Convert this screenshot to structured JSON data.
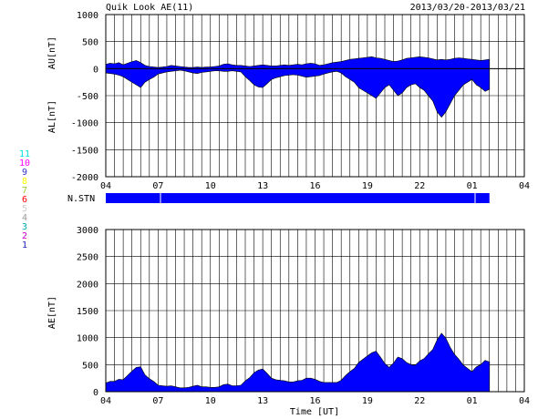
{
  "header": {
    "title": "Quik Look AE(11)",
    "date_range": "2013/03/20-2013/03/21"
  },
  "station_legend": [
    {
      "label": "11",
      "color": "#00e0e0"
    },
    {
      "label": "10",
      "color": "#ff00ff"
    },
    {
      "label": "9",
      "color": "#3333cc"
    },
    {
      "label": "8",
      "color": "#ffff00"
    },
    {
      "label": "7",
      "color": "#99cc33"
    },
    {
      "label": "6",
      "color": "#ff0000"
    },
    {
      "label": "5",
      "color": "#cccccc"
    },
    {
      "label": "4",
      "color": "#999999"
    },
    {
      "label": "3",
      "color": "#00aaaa"
    },
    {
      "label": "2",
      "color": "#cc00cc"
    },
    {
      "label": "1",
      "color": "#2222bb"
    }
  ],
  "nstn_label": "N.STN",
  "chart_data": [
    {
      "type": "area",
      "ylabel_upper": "AU[nT]",
      "ylabel_lower": "AL[nT]",
      "ylim": [
        -2000,
        1000
      ],
      "yticks": [
        1000,
        500,
        0,
        -500,
        -1000,
        -1500,
        -2000
      ],
      "xlim": [
        0,
        48
      ],
      "xticks": [
        "04",
        "07",
        "10",
        "13",
        "16",
        "19",
        "22",
        "01",
        "04"
      ],
      "grid": true,
      "fill_color": "#0000ff",
      "x": [
        0,
        0.5,
        1,
        1.5,
        2,
        2.5,
        3,
        3.5,
        4,
        4.5,
        5,
        5.5,
        6,
        6.5,
        7,
        7.5,
        8,
        8.5,
        9,
        9.5,
        10,
        10.5,
        11,
        11.5,
        12,
        12.5,
        13,
        13.5,
        14,
        14.5,
        15,
        15.5,
        16,
        16.5,
        17,
        17.5,
        18,
        18.5,
        19,
        19.5,
        20,
        20.5,
        21,
        21.5,
        22,
        22.5,
        23,
        23.5,
        24,
        24.5,
        25,
        25.5,
        26,
        26.5,
        27,
        27.5,
        28,
        28.5,
        29,
        29.5,
        30,
        30.5,
        31,
        31.5,
        32,
        32.5,
        33,
        33.5,
        34,
        34.5,
        35,
        35.5,
        36,
        36.5,
        37,
        37.5,
        38,
        38.5,
        39,
        39.5,
        40,
        40.5,
        41,
        41.5,
        42,
        42.5,
        43,
        43.5,
        44
      ],
      "series": [
        {
          "name": "AU",
          "values": [
            80,
            100,
            90,
            110,
            70,
            100,
            130,
            150,
            110,
            60,
            40,
            30,
            20,
            30,
            40,
            60,
            50,
            40,
            30,
            20,
            20,
            30,
            20,
            30,
            30,
            40,
            50,
            80,
            90,
            70,
            60,
            60,
            50,
            40,
            50,
            60,
            70,
            60,
            50,
            50,
            60,
            70,
            60,
            70,
            80,
            70,
            90,
            100,
            90,
            60,
            70,
            90,
            110,
            120,
            130,
            150,
            170,
            180,
            190,
            200,
            210,
            220,
            200,
            190,
            170,
            150,
            130,
            140,
            160,
            190,
            200,
            210,
            220,
            210,
            200,
            180,
            160,
            170,
            160,
            170,
            190,
            200,
            190,
            180,
            170,
            160,
            150,
            160,
            170
          ]
        },
        {
          "name": "AL",
          "values": [
            -80,
            -90,
            -100,
            -120,
            -150,
            -200,
            -250,
            -300,
            -350,
            -250,
            -200,
            -160,
            -100,
            -80,
            -60,
            -50,
            -40,
            -30,
            -40,
            -60,
            -80,
            -90,
            -70,
            -60,
            -50,
            -40,
            -40,
            -50,
            -50,
            -40,
            -50,
            -60,
            -150,
            -220,
            -300,
            -340,
            -350,
            -280,
            -200,
            -170,
            -150,
            -130,
            -120,
            -110,
            -120,
            -140,
            -160,
            -150,
            -140,
            -130,
            -100,
            -80,
            -60,
            -50,
            -80,
            -150,
            -200,
            -250,
            -350,
            -400,
            -450,
            -500,
            -550,
            -450,
            -350,
            -300,
            -400,
            -500,
            -450,
            -350,
            -300,
            -280,
            -350,
            -400,
            -500,
            -600,
            -800,
            -900,
            -800,
            -650,
            -500,
            -400,
            -300,
            -250,
            -200,
            -300,
            -350,
            -420,
            -380
          ]
        }
      ]
    },
    {
      "type": "area",
      "ylabel": "AE[nT]",
      "xlabel": "Time [UT]",
      "ylim": [
        0,
        3000
      ],
      "yticks": [
        3000,
        2500,
        2000,
        1500,
        1000,
        500,
        0
      ],
      "xlim": [
        0,
        48
      ],
      "xticks": [
        "04",
        "07",
        "10",
        "13",
        "16",
        "19",
        "22",
        "01",
        "04"
      ],
      "grid": true,
      "fill_color": "#0000ff",
      "x": [
        0,
        0.5,
        1,
        1.5,
        2,
        2.5,
        3,
        3.5,
        4,
        4.5,
        5,
        5.5,
        6,
        6.5,
        7,
        7.5,
        8,
        8.5,
        9,
        9.5,
        10,
        10.5,
        11,
        11.5,
        12,
        12.5,
        13,
        13.5,
        14,
        14.5,
        15,
        15.5,
        16,
        16.5,
        17,
        17.5,
        18,
        18.5,
        19,
        19.5,
        20,
        20.5,
        21,
        21.5,
        22,
        22.5,
        23,
        23.5,
        24,
        24.5,
        25,
        25.5,
        26,
        26.5,
        27,
        27.5,
        28,
        28.5,
        29,
        29.5,
        30,
        30.5,
        31,
        31.5,
        32,
        32.5,
        33,
        33.5,
        34,
        34.5,
        35,
        35.5,
        36,
        36.5,
        37,
        37.5,
        38,
        38.5,
        39,
        39.5,
        40,
        40.5,
        41,
        41.5,
        42,
        42.5,
        43,
        43.5,
        44
      ],
      "values": [
        160,
        190,
        190,
        230,
        220,
        300,
        380,
        450,
        460,
        310,
        240,
        190,
        120,
        110,
        100,
        110,
        90,
        70,
        70,
        80,
        100,
        120,
        90,
        90,
        80,
        80,
        90,
        130,
        140,
        110,
        110,
        120,
        200,
        260,
        350,
        400,
        420,
        340,
        250,
        220,
        210,
        200,
        180,
        180,
        200,
        210,
        250,
        250,
        230,
        190,
        170,
        170,
        170,
        170,
        210,
        300,
        370,
        430,
        540,
        600,
        660,
        720,
        750,
        640,
        520,
        450,
        530,
        640,
        610,
        540,
        500,
        490,
        570,
        610,
        700,
        780,
        960,
        1080,
        990,
        820,
        690,
        600,
        490,
        430,
        370,
        460,
        500,
        580,
        550
      ]
    }
  ],
  "nstn": {
    "type": "bar",
    "ylim": [
      0,
      11
    ],
    "x": [
      0,
      44
    ],
    "values": [
      11,
      11
    ],
    "fill_color": "#0000ff"
  }
}
